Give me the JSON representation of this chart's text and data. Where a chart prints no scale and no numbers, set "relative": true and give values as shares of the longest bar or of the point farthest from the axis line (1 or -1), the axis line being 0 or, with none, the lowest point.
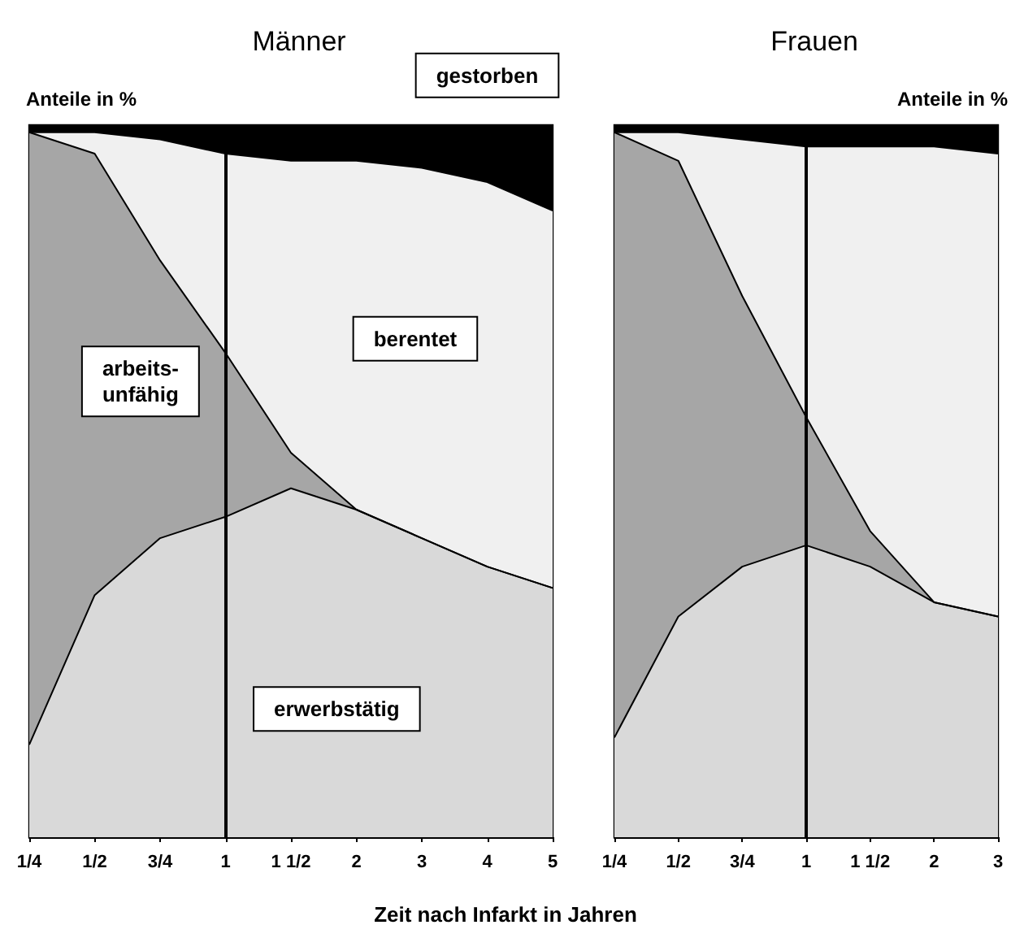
{
  "chart_data": [
    {
      "type": "area",
      "title": "Männer",
      "ylabel": "Anteile in %",
      "xlabel": "Zeit nach Infarkt in Jahren",
      "relative": true,
      "stacked": true,
      "legend": false,
      "grid": false,
      "categories": [
        "1/4",
        "1/2",
        "3/4",
        "1",
        "1 1/2",
        "2",
        "3",
        "4",
        "5"
      ],
      "ref_lines": [
        {
          "axis": "x",
          "value": "1",
          "color": "#000000"
        }
      ],
      "series": [
        {
          "name": "erwerbstätig",
          "color": "#d9d9d9",
          "values": [
            0.13,
            0.34,
            0.42,
            0.45,
            0.49,
            0.46,
            0.42,
            0.38,
            0.35
          ]
        },
        {
          "name": "arbeits-unfähig",
          "color": "#a6a6a6",
          "values": [
            0.86,
            0.62,
            0.39,
            0.23,
            0.05,
            0,
            0,
            0,
            0
          ]
        },
        {
          "name": "berentet",
          "color": "#f0f0f0",
          "values": [
            0,
            0.03,
            0.17,
            0.28,
            0.41,
            0.49,
            0.52,
            0.54,
            0.53
          ]
        },
        {
          "name": "gestorben",
          "color": "#000000",
          "values": [
            0.01,
            0.01,
            0.02,
            0.04,
            0.05,
            0.05,
            0.06,
            0.08,
            0.12
          ]
        }
      ]
    },
    {
      "type": "area",
      "title": "Frauen",
      "ylabel": "Anteile in %",
      "relative": true,
      "stacked": true,
      "legend": false,
      "grid": false,
      "categories": [
        "1/4",
        "1/2",
        "3/4",
        "1",
        "1 1/2",
        "2",
        "3"
      ],
      "ref_lines": [
        {
          "axis": "x",
          "value": "1",
          "color": "#000000"
        }
      ],
      "series": [
        {
          "color": "#d9d9d9",
          "values": [
            0.14,
            0.31,
            0.38,
            0.41,
            0.38,
            0.33,
            0.31
          ]
        },
        {
          "color": "#a6a6a6",
          "values": [
            0.85,
            0.64,
            0.38,
            0.18,
            0.05,
            0,
            0
          ]
        },
        {
          "color": "#f0f0f0",
          "values": [
            0,
            0.04,
            0.22,
            0.38,
            0.54,
            0.64,
            0.65
          ]
        },
        {
          "color": "#000000",
          "values": [
            0.01,
            0.01,
            0.02,
            0.03,
            0.03,
            0.03,
            0.04
          ]
        }
      ]
    }
  ]
}
